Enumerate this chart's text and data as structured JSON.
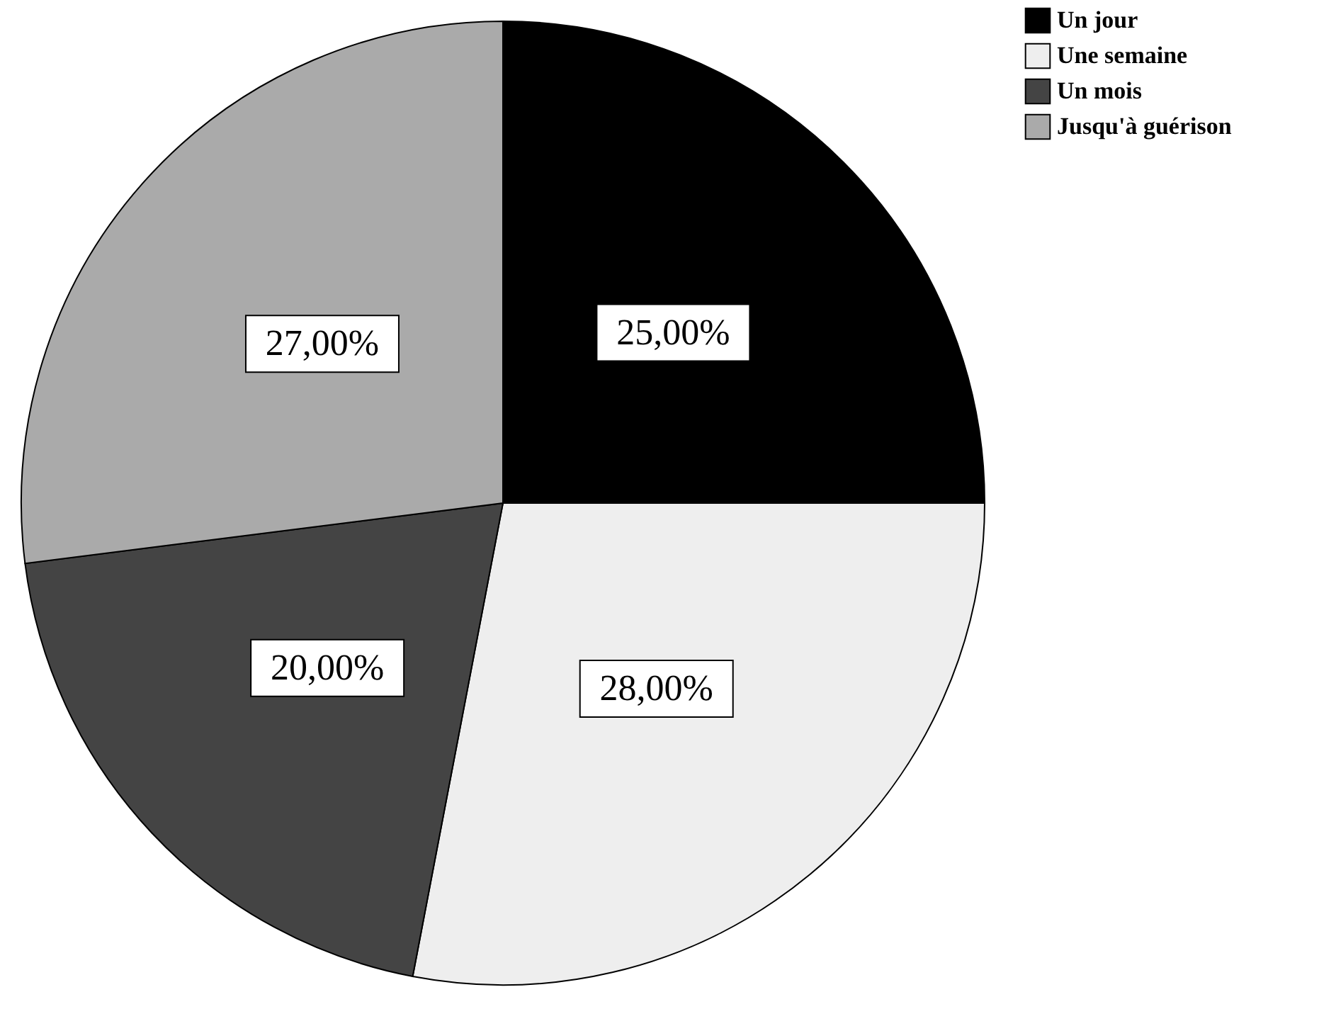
{
  "chart_data": {
    "type": "pie",
    "categories": [
      "Un jour",
      "Une semaine",
      "Un mois",
      "Jusqu'à guérison"
    ],
    "values": [
      25,
      28,
      20,
      27
    ],
    "colors": [
      "#000000",
      "#eeeeee",
      "#444444",
      "#aaaaaa"
    ],
    "value_labels": [
      "25,00%",
      "28,00%",
      "20,00%",
      "27,00%"
    ],
    "legend": "right"
  }
}
